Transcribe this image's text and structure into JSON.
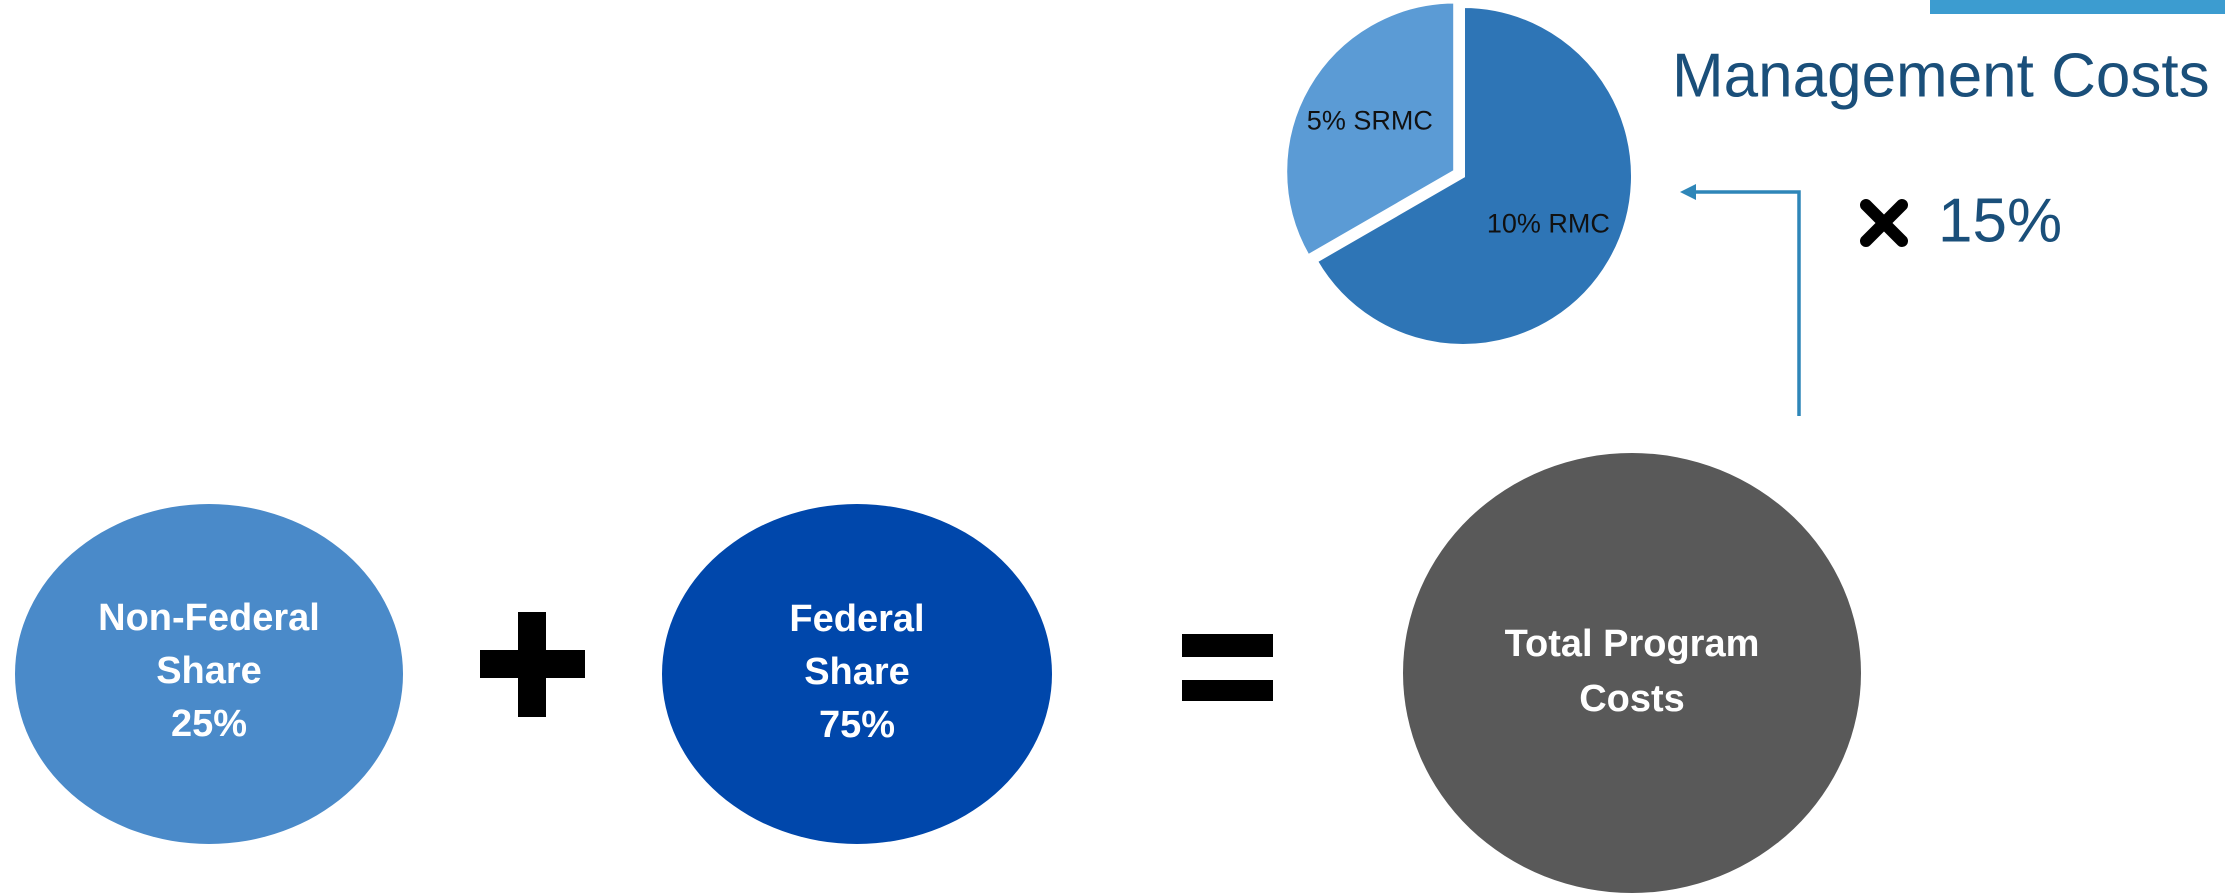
{
  "title": "Management Costs",
  "multiplier": "15%",
  "chart_data": {
    "type": "pie",
    "values": [
      5,
      10
    ],
    "value_labels": [
      "5% SRMC",
      "10% RMC"
    ],
    "colors": [
      "#5b9bd5",
      "#2e75b6"
    ]
  },
  "nodes": [
    {
      "lines": [
        "Non-Federal",
        "Share",
        "25%"
      ]
    },
    {
      "lines": [
        "Federal",
        "Share",
        "75%"
      ]
    },
    {
      "lines": [
        "Total Program",
        "Costs"
      ]
    }
  ]
}
